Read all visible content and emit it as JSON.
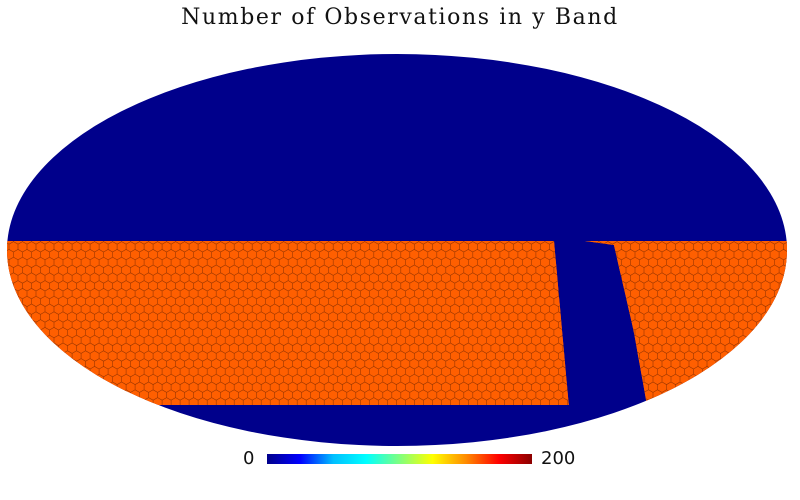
{
  "title": "Number of Observations in y Band",
  "colorbar": {
    "min_label": "0",
    "max_label": "200",
    "stops": [
      "#00008b",
      "#0000ff",
      "#00bfff",
      "#00ffff",
      "#7fff7f",
      "#ffff00",
      "#ff8c00",
      "#ff0000",
      "#8b0000"
    ]
  },
  "map": {
    "projection": "Mollweide",
    "background_color": "#00008b",
    "observed_color": "#ff5f00",
    "pointing_outline_color": "#7a2a00"
  }
}
